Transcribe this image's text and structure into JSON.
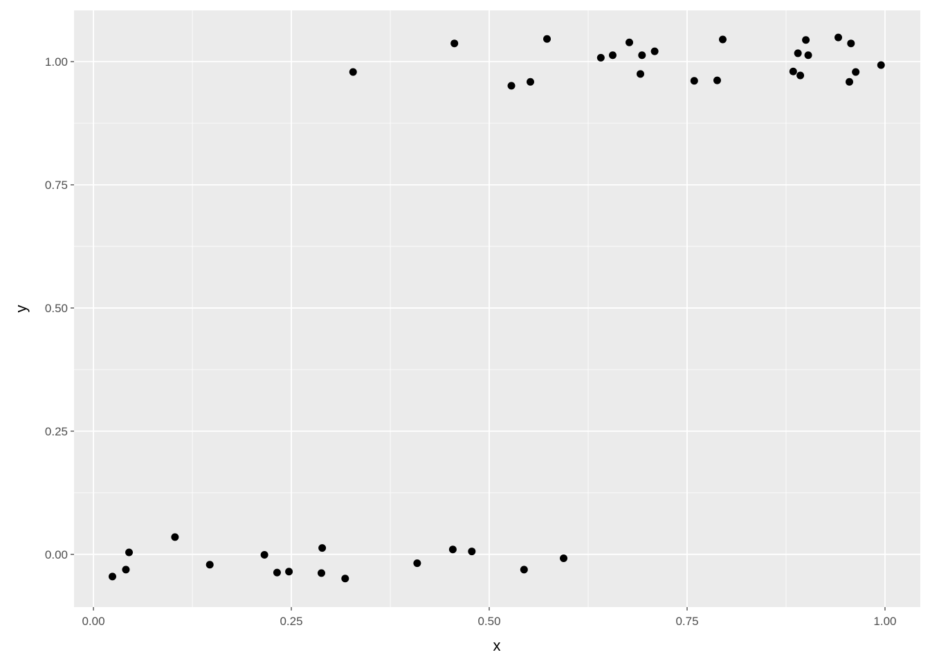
{
  "chart_data": {
    "type": "scatter",
    "title": "",
    "xlabel": "x",
    "ylabel": "y",
    "xlim": [
      -0.0245,
      1.0446
    ],
    "ylim": [
      -0.107,
      1.104
    ],
    "grid": true,
    "panel_background": "#EBEBEB",
    "grid_color": "#FFFFFF",
    "point_color": "#000000",
    "x_ticks": [
      0,
      0.25,
      0.5,
      0.75,
      1
    ],
    "x_tick_labels": [
      "0.00",
      "0.25",
      "0.50",
      "0.75",
      "1.00"
    ],
    "y_ticks": [
      0,
      0.25,
      0.5,
      0.75,
      1
    ],
    "y_tick_labels": [
      "0.00",
      "0.25",
      "0.50",
      "0.75",
      "1.00"
    ],
    "x": [
      0.328,
      0.456,
      0.528,
      0.552,
      0.573,
      0.641,
      0.656,
      0.677,
      0.691,
      0.693,
      0.709,
      0.759,
      0.788,
      0.795,
      0.884,
      0.89,
      0.893,
      0.9,
      0.903,
      0.941,
      0.955,
      0.957,
      0.963,
      0.995,
      0.024,
      0.041,
      0.045,
      0.103,
      0.147,
      0.216,
      0.232,
      0.247,
      0.288,
      0.289,
      0.318,
      0.409,
      0.454,
      0.478,
      0.544,
      0.594
    ],
    "y": [
      0.979,
      1.037,
      0.951,
      0.959,
      1.046,
      1.008,
      1.013,
      1.039,
      0.975,
      1.013,
      1.021,
      0.961,
      0.962,
      1.045,
      0.98,
      1.017,
      0.972,
      1.044,
      1.013,
      1.049,
      0.959,
      1.037,
      0.979,
      0.993,
      -0.045,
      -0.031,
      0.004,
      0.035,
      -0.021,
      -0.001,
      -0.037,
      -0.035,
      -0.038,
      0.013,
      -0.049,
      -0.018,
      0.01,
      0.006,
      -0.031,
      -0.008
    ]
  }
}
